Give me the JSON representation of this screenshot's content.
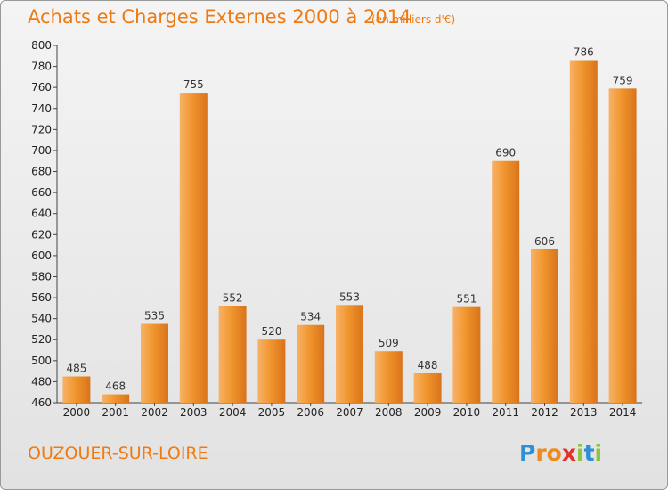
{
  "chart_data": {
    "type": "bar",
    "title": "Achats et Charges Externes 2000 à 2014",
    "subtitle": "(en milliers d'€)",
    "categories": [
      "2000",
      "2001",
      "2002",
      "2003",
      "2004",
      "2005",
      "2006",
      "2007",
      "2008",
      "2009",
      "2010",
      "2011",
      "2012",
      "2013",
      "2014"
    ],
    "values": [
      485,
      468,
      535,
      755,
      552,
      520,
      534,
      553,
      509,
      488,
      551,
      690,
      606,
      786,
      759
    ],
    "ylim": [
      460,
      800
    ],
    "yticks": [
      460,
      480,
      500,
      520,
      540,
      560,
      580,
      600,
      620,
      640,
      660,
      680,
      700,
      720,
      740,
      760,
      780,
      800
    ],
    "xlabel": "",
    "ylabel": "",
    "grid": false,
    "legend": "none",
    "bar_color": "#f0962e"
  },
  "footer": {
    "commune": "OUZOUER-SUR-LOIRE",
    "logo": {
      "P": "P",
      "r": "r",
      "o": "o",
      "x": "x",
      "i1": "i",
      "t": "t",
      "i2": "i"
    }
  },
  "colors": {
    "accent": "#f07a10",
    "bar_light": "#f7b266",
    "bar_dark": "#d9731a"
  }
}
